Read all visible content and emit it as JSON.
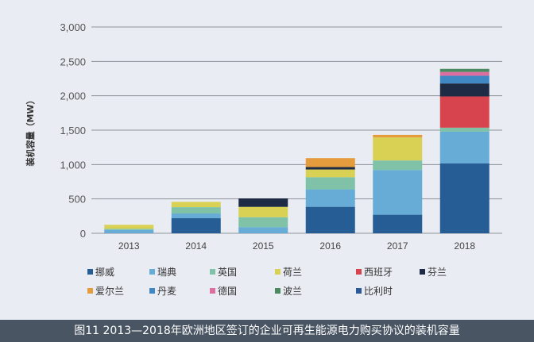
{
  "chart_data": {
    "type": "bar",
    "stacked": true,
    "title": "",
    "xlabel": "",
    "ylabel": "装机容量（MW）",
    "ylim": [
      0,
      3000
    ],
    "yticks": [
      0,
      500,
      1000,
      1500,
      2000,
      2500,
      3000
    ],
    "ytick_labels": [
      "0",
      "500",
      "1,000",
      "1,500",
      "2,000",
      "2,500",
      "3,000"
    ],
    "grid": true,
    "legend_position": "bottom",
    "categories": [
      "2013",
      "2014",
      "2015",
      "2016",
      "2017",
      "2018"
    ],
    "series": [
      {
        "name": "挪威",
        "color": "#265d94",
        "values": [
          0,
          219,
          0,
          385,
          270,
          1016
        ]
      },
      {
        "name": "瑞典",
        "color": "#66acd6",
        "values": [
          50,
          69,
          88,
          254,
          650,
          462
        ]
      },
      {
        "name": "英国",
        "color": "#7fc2a8",
        "values": [
          15,
          92,
          146,
          177,
          139,
          58
        ]
      },
      {
        "name": "荷兰",
        "color": "#d8d153",
        "values": [
          58,
          77,
          150,
          112,
          335,
          0
        ]
      },
      {
        "name": "西班牙",
        "color": "#d8444d",
        "values": [
          0,
          0,
          0,
          0,
          0,
          454
        ]
      },
      {
        "name": "芬兰",
        "color": "#1e2b45",
        "values": [
          0,
          0,
          123,
          35,
          0,
          189
        ]
      },
      {
        "name": "爱尔兰",
        "color": "#e59c3c",
        "values": [
          0,
          0,
          0,
          131,
          38,
          0
        ]
      },
      {
        "name": "丹麦",
        "color": "#3f88c4",
        "values": [
          0,
          0,
          0,
          0,
          0,
          112
        ]
      },
      {
        "name": "德国",
        "color": "#dd6e9f",
        "values": [
          0,
          0,
          0,
          0,
          0,
          55
        ]
      },
      {
        "name": "波兰",
        "color": "#4a8a5e",
        "values": [
          0,
          0,
          0,
          0,
          0,
          45
        ]
      },
      {
        "name": "比利时",
        "color": "#2a5b98",
        "values": [
          0,
          0,
          0,
          0,
          0,
          0
        ]
      }
    ]
  },
  "caption": "图11  2013—2018年欧洲地区签订的企业可再生能源电力购买协议的装机容量"
}
